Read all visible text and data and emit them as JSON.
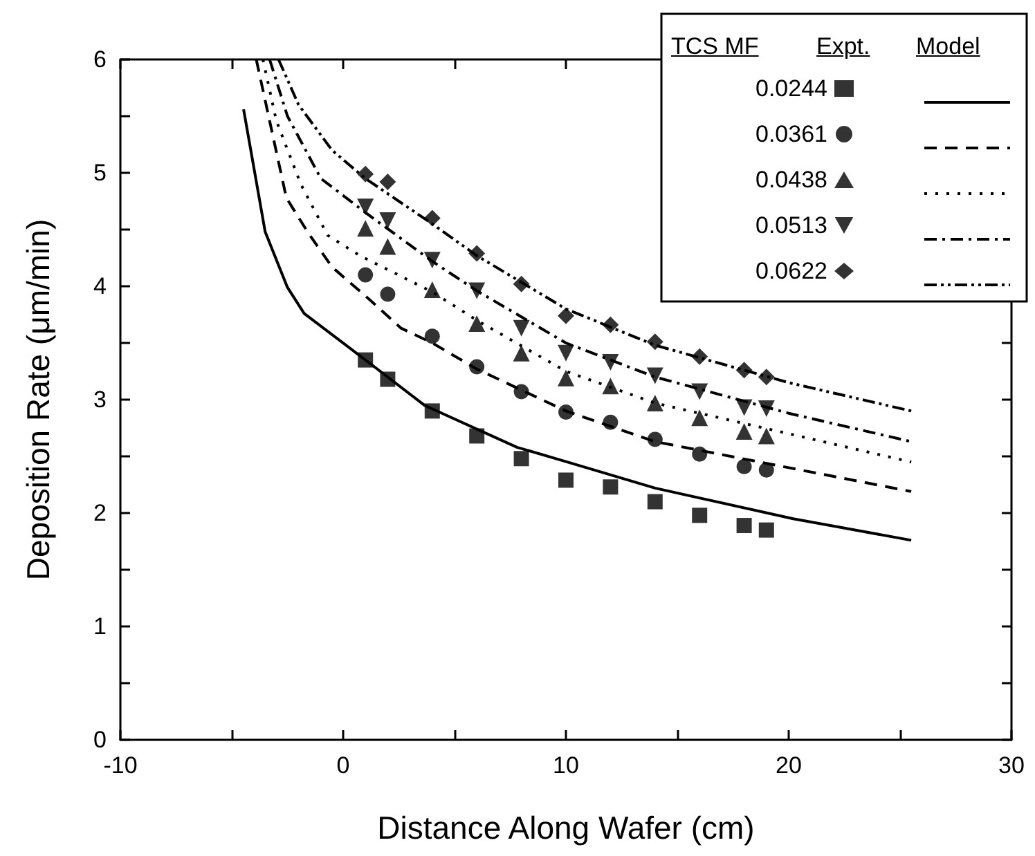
{
  "chart_data": {
    "type": "scatter",
    "xlabel": "Distance Along Wafer (cm)",
    "ylabel": "Deposition Rate (μm/min)",
    "legend_title": "TCS MF",
    "annotations": [
      "Expt.",
      "Model"
    ],
    "xlim": [
      -10,
      30
    ],
    "xticks": [
      -10,
      {
        "value": -5,
        "label": null
      },
      0,
      {
        "value": 5,
        "label": null
      },
      10,
      {
        "value": 15,
        "label": null
      },
      20,
      {
        "value": 25,
        "label": null
      },
      30
    ],
    "ylim": [
      0,
      6
    ],
    "yticks": [
      0,
      {
        "value": 0.5,
        "label": null
      },
      1,
      {
        "value": 1.5,
        "label": null
      },
      2,
      {
        "value": 2.5,
        "label": null
      },
      3,
      {
        "value": 3.5,
        "label": null
      },
      4,
      {
        "value": 4.5,
        "label": null
      },
      5,
      {
        "value": 5.5,
        "label": null
      },
      6
    ],
    "grid": false,
    "legend": "top right",
    "series": [
      {
        "name": "0.0244",
        "marker": "square",
        "color": "#000000",
        "x": [
          1,
          2,
          4,
          6,
          8,
          10,
          12,
          14,
          16,
          18,
          19
        ],
        "values": [
          3.35,
          3.18,
          2.9,
          2.68,
          2.48,
          2.29,
          2.23,
          2.1,
          1.98,
          1.89,
          1.85
        ]
      },
      {
        "name": "0.0361",
        "marker": "circle",
        "color": "#000000",
        "x": [
          1,
          2,
          4,
          6,
          8,
          10,
          12,
          14,
          16,
          18,
          19
        ],
        "values": [
          4.1,
          3.93,
          3.56,
          3.29,
          3.07,
          2.89,
          2.8,
          2.65,
          2.52,
          2.41,
          2.38
        ]
      },
      {
        "name": "0.0438",
        "marker": "triangle",
        "color": "#000000",
        "x": [
          1,
          2,
          4,
          6,
          8,
          10,
          12,
          14,
          16,
          18,
          19
        ],
        "values": [
          4.51,
          4.35,
          3.97,
          3.67,
          3.41,
          3.19,
          3.12,
          2.97,
          2.84,
          2.72,
          2.68
        ]
      },
      {
        "name": "0.0513",
        "marker": "triangle-down",
        "color": "#000000",
        "x": [
          1,
          2,
          4,
          6,
          8,
          10,
          12,
          14,
          16,
          18,
          19
        ],
        "values": [
          4.7,
          4.58,
          4.23,
          3.96,
          3.63,
          3.41,
          3.33,
          3.21,
          3.07,
          2.93,
          2.92
        ]
      },
      {
        "name": "0.0622",
        "marker": "diamond",
        "color": "#000000",
        "x": [
          1,
          2,
          4,
          6,
          8,
          10,
          12,
          14,
          16,
          18,
          19
        ],
        "values": [
          4.99,
          4.92,
          4.6,
          4.29,
          4.02,
          3.74,
          3.66,
          3.51,
          3.38,
          3.26,
          3.2
        ]
      },
      {
        "type": "line",
        "line_style": "solid",
        "marker": "none",
        "color": "#000000",
        "x": [
          -4.47,
          -3.5,
          -2.5,
          -1.75,
          1.2,
          3.65,
          7.8,
          9.9,
          14,
          20.2,
          25.5
        ],
        "values": [
          5.56,
          4.48,
          3.99,
          3.76,
          3.32,
          2.95,
          2.58,
          2.46,
          2.22,
          1.95,
          1.76
        ]
      },
      {
        "type": "line",
        "line_style": "dashed",
        "marker": "none",
        "color": "#000000",
        "x": [
          -3.9,
          -2.55,
          -1.6,
          -0.5,
          1.2,
          2.6,
          4,
          6,
          10,
          14,
          20,
          25.5
        ],
        "values": [
          6,
          4.78,
          4.48,
          4.17,
          3.88,
          3.63,
          3.5,
          3.27,
          2.9,
          2.63,
          2.4,
          2.19
        ]
      },
      {
        "type": "line",
        "line_style": "dotted",
        "marker": "none",
        "color": "#000000",
        "x": [
          -3.6,
          -3,
          -1.9,
          -0.7,
          0.75,
          4,
          6,
          10,
          14,
          20,
          25.5
        ],
        "values": [
          6,
          5.46,
          4.9,
          4.45,
          4.27,
          3.95,
          3.7,
          3.25,
          2.97,
          2.7,
          2.45
        ]
      },
      {
        "type": "line",
        "line_style": "dashdot",
        "marker": "none",
        "color": "#000000",
        "x": [
          -3.3,
          -2.5,
          -1,
          1,
          4,
          6,
          10,
          14,
          20,
          25.5
        ],
        "values": [
          6,
          5.5,
          4.95,
          4.65,
          4.22,
          3.96,
          3.5,
          3.2,
          2.88,
          2.63
        ]
      },
      {
        "type": "line",
        "line_style": "dashdotdot",
        "marker": "none",
        "color": "#000000",
        "x": [
          -2.9,
          -2,
          -0.5,
          1,
          4,
          6,
          10,
          14,
          20,
          25.5
        ],
        "values": [
          6,
          5.6,
          5.2,
          4.95,
          4.55,
          4.27,
          3.8,
          3.48,
          3.15,
          2.9
        ]
      }
    ]
  }
}
